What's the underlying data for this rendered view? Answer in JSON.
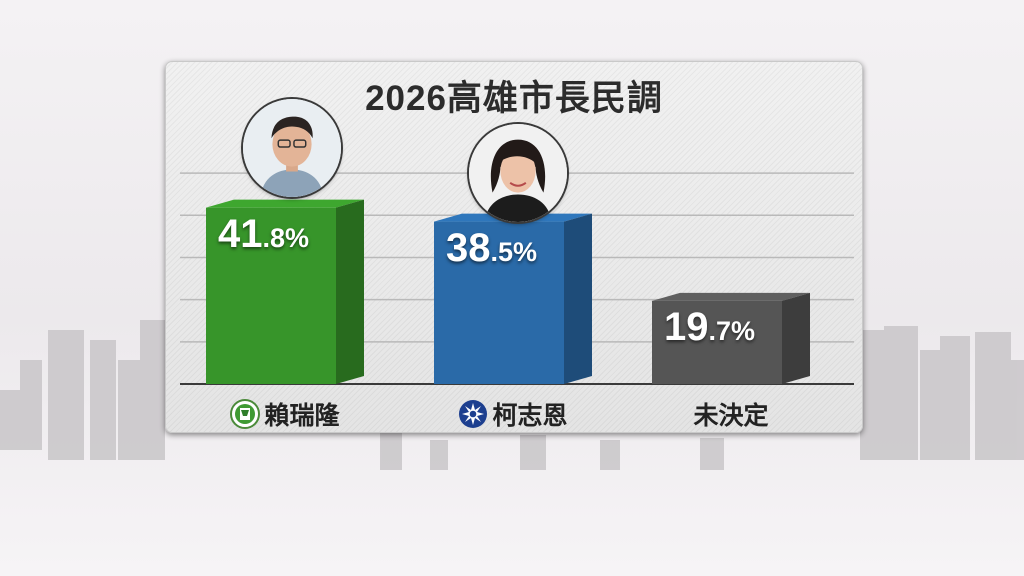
{
  "chart_data": {
    "type": "bar",
    "title": "2026高雄市長民調",
    "categories": [
      "賴瑞隆",
      "柯志恩",
      "未決定"
    ],
    "values": [
      41.8,
      38.5,
      19.7
    ],
    "value_labels": [
      {
        "int": "41",
        "dec": ".8%"
      },
      {
        "int": "38",
        "dec": ".5%"
      },
      {
        "int": "19",
        "dec": ".7%"
      }
    ],
    "ylim": [
      0,
      55
    ],
    "grid": true,
    "colors": [
      "#37952a",
      "#2a6aa8",
      "#555555"
    ],
    "category_icons": [
      "dpp-emblem-icon",
      "kmt-emblem-icon",
      ""
    ],
    "avatars": [
      "candidate-photo-lai",
      "candidate-photo-ko",
      ""
    ]
  }
}
